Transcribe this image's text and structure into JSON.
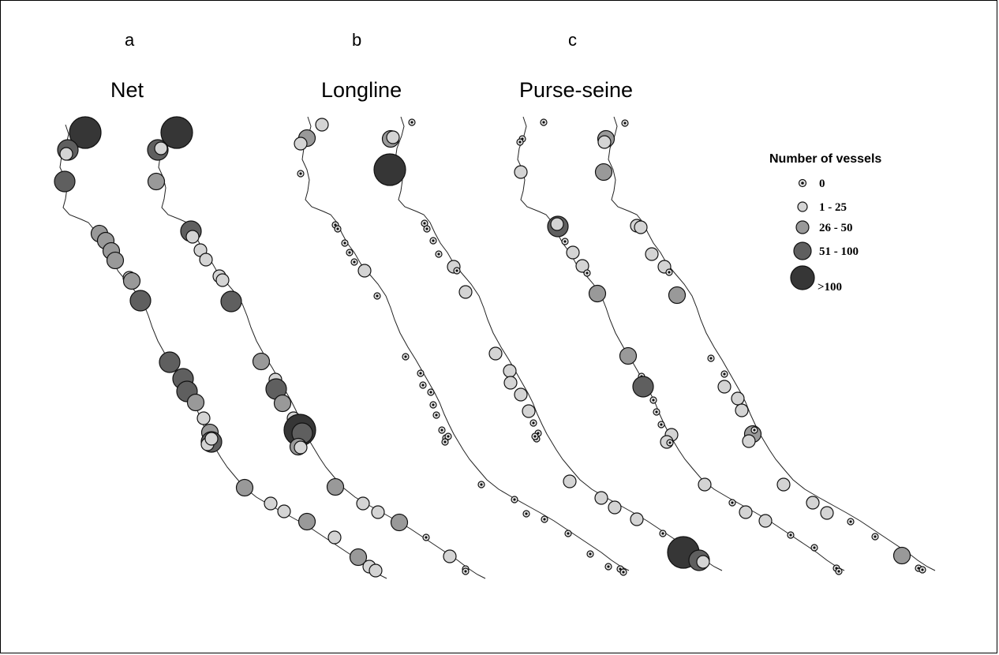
{
  "panels": [
    {
      "letter": "a",
      "title": "Net"
    },
    {
      "letter": "b",
      "title": "Longline"
    },
    {
      "letter": "c",
      "title": "Purse-seine"
    }
  ],
  "legend": {
    "title": "Number of vessels",
    "classes": [
      {
        "label": "0",
        "color": "#111111"
      },
      {
        "label": "1 - 25",
        "color": "#d4d4d4"
      },
      {
        "label": "26 - 50",
        "color": "#999999"
      },
      {
        "label": "51 - 100",
        "color": "#5f5f5f"
      },
      {
        "label": ">100",
        "color": "#363636"
      }
    ]
  }
}
